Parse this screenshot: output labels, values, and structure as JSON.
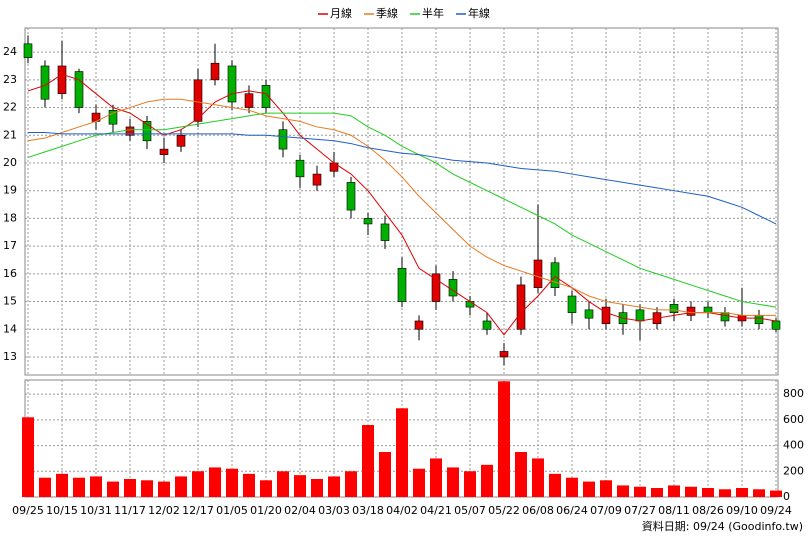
{
  "chart_data": {
    "type": "candlestick",
    "categories": [
      "09/25",
      null,
      "10/15",
      null,
      "10/31",
      null,
      "11/17",
      null,
      "12/02",
      null,
      "12/17",
      null,
      "01/05",
      null,
      "01/20",
      null,
      "02/04",
      null,
      "03/03",
      null,
      "03/18",
      null,
      "04/02",
      null,
      "04/21",
      null,
      "05/07",
      null,
      "05/22",
      null,
      "06/08",
      null,
      "06/24",
      null,
      "07/09",
      null,
      "07/27",
      null,
      "08/11",
      null,
      "08/26",
      null,
      "09/10",
      null,
      "09/24"
    ],
    "open": [
      24.3,
      23.5,
      22.5,
      23.3,
      21.5,
      21.9,
      21.0,
      21.5,
      20.3,
      20.6,
      21.5,
      23.0,
      23.5,
      22.0,
      22.8,
      21.2,
      20.1,
      19.2,
      19.7,
      19.3,
      18.0,
      17.8,
      16.2,
      14.0,
      15.0,
      15.8,
      15.0,
      14.3,
      13.0,
      14.0,
      15.5,
      16.4,
      15.2,
      14.7,
      14.2,
      14.6,
      14.7,
      14.2,
      14.9,
      14.5,
      14.8,
      14.6,
      14.3,
      14.5,
      14.3
    ],
    "high": [
      24.6,
      23.7,
      24.4,
      23.4,
      22.1,
      22.1,
      21.6,
      21.7,
      20.9,
      21.2,
      23.4,
      24.3,
      23.7,
      22.8,
      23.0,
      21.5,
      20.3,
      19.9,
      20.4,
      19.5,
      18.2,
      18.1,
      16.6,
      14.5,
      16.3,
      16.1,
      15.2,
      14.6,
      13.5,
      15.9,
      18.5,
      16.6,
      15.4,
      15.0,
      15.1,
      14.9,
      14.9,
      14.8,
      15.1,
      15.0,
      15.0,
      14.8,
      15.5,
      14.7,
      14.4
    ],
    "low": [
      23.6,
      22.0,
      22.3,
      21.8,
      21.2,
      21.1,
      20.8,
      20.5,
      20.0,
      20.4,
      21.3,
      22.8,
      21.9,
      21.8,
      21.8,
      20.2,
      19.1,
      19.0,
      19.5,
      18.0,
      17.4,
      16.9,
      14.8,
      13.6,
      14.7,
      15.0,
      14.5,
      13.8,
      12.7,
      13.8,
      15.3,
      15.2,
      14.2,
      14.0,
      14.0,
      13.8,
      13.6,
      14.0,
      14.3,
      14.3,
      14.4,
      14.1,
      14.1,
      14.0,
      13.9
    ],
    "close": [
      23.8,
      22.3,
      23.5,
      22.0,
      21.8,
      21.4,
      21.3,
      20.8,
      20.5,
      21.0,
      23.0,
      23.6,
      22.2,
      22.5,
      22.0,
      20.5,
      19.5,
      19.6,
      20.0,
      18.3,
      17.8,
      17.2,
      15.0,
      14.3,
      16.0,
      15.2,
      14.8,
      14.0,
      13.2,
      15.6,
      16.5,
      15.5,
      14.6,
      14.4,
      14.8,
      14.2,
      14.3,
      14.6,
      14.6,
      14.8,
      14.6,
      14.3,
      14.5,
      14.2,
      14.0
    ],
    "up_color": "#e00000",
    "down_color": "#00b000",
    "series": [
      {
        "name": "月線",
        "color": "#e00000",
        "values": [
          22.6,
          22.8,
          23.2,
          23.0,
          22.5,
          22.0,
          21.8,
          21.4,
          21.0,
          21.2,
          21.6,
          22.2,
          22.5,
          22.6,
          22.5,
          21.8,
          21.0,
          20.5,
          20.0,
          19.6,
          19.0,
          18.2,
          17.4,
          16.2,
          15.8,
          15.4,
          15.0,
          14.6,
          13.8,
          14.6,
          15.2,
          15.9,
          15.5,
          15.0,
          14.6,
          14.4,
          14.3,
          14.4,
          14.5,
          14.6,
          14.6,
          14.5,
          14.4,
          14.4,
          14.3
        ]
      },
      {
        "name": "季線",
        "color": "#e87a20",
        "values": [
          20.8,
          20.9,
          21.1,
          21.3,
          21.5,
          21.8,
          22.0,
          22.2,
          22.3,
          22.3,
          22.2,
          22.1,
          22.0,
          21.9,
          21.7,
          21.6,
          21.5,
          21.3,
          21.2,
          21.0,
          20.6,
          20.1,
          19.5,
          18.8,
          18.2,
          17.6,
          17.0,
          16.6,
          16.3,
          16.1,
          15.9,
          15.7,
          15.5,
          15.2,
          15.0,
          14.9,
          14.8,
          14.7,
          14.7,
          14.6,
          14.6,
          14.6,
          14.5,
          14.5,
          14.5
        ]
      },
      {
        "name": "半年",
        "color": "#22cc22",
        "values": [
          20.2,
          20.4,
          20.6,
          20.8,
          21.0,
          21.1,
          21.2,
          21.2,
          21.2,
          21.3,
          21.4,
          21.5,
          21.6,
          21.7,
          21.8,
          21.8,
          21.8,
          21.8,
          21.8,
          21.7,
          21.3,
          21.0,
          20.6,
          20.3,
          20.0,
          19.6,
          19.3,
          19.0,
          18.7,
          18.4,
          18.1,
          17.8,
          17.4,
          17.1,
          16.8,
          16.5,
          16.2,
          16.0,
          15.8,
          15.6,
          15.4,
          15.2,
          15.0,
          14.9,
          14.8
        ]
      },
      {
        "name": "年線",
        "color": "#1f5fc8",
        "values": [
          21.1,
          21.1,
          21.05,
          21.05,
          21.05,
          21.05,
          21.05,
          21.05,
          21.05,
          21.05,
          21.05,
          21.05,
          21.05,
          21.0,
          21.0,
          20.95,
          20.9,
          20.85,
          20.8,
          20.7,
          20.55,
          20.45,
          20.35,
          20.3,
          20.2,
          20.1,
          20.05,
          20.0,
          19.9,
          19.8,
          19.75,
          19.7,
          19.6,
          19.5,
          19.4,
          19.3,
          19.2,
          19.1,
          19.0,
          18.9,
          18.8,
          18.6,
          18.4,
          18.1,
          17.8
        ]
      }
    ],
    "ylim": [
      12.35,
      24.87
    ],
    "yticks": [
      13,
      14,
      15,
      16,
      17,
      18,
      19,
      20,
      21,
      22,
      23,
      24
    ],
    "grid": true,
    "volume": {
      "color": "#ff0000",
      "values": [
        620,
        150,
        180,
        150,
        160,
        120,
        140,
        130,
        120,
        160,
        200,
        230,
        220,
        180,
        130,
        200,
        170,
        140,
        160,
        200,
        560,
        350,
        690,
        220,
        300,
        230,
        200,
        250,
        900,
        350,
        300,
        180,
        150,
        120,
        130,
        90,
        80,
        70,
        90,
        80,
        70,
        60,
        70,
        60,
        50
      ],
      "ylim": [
        0,
        910
      ],
      "yticks": [
        0,
        200,
        400,
        600,
        800
      ]
    },
    "note": "資料日期: 09/24  (Goodinfo.tw)"
  }
}
